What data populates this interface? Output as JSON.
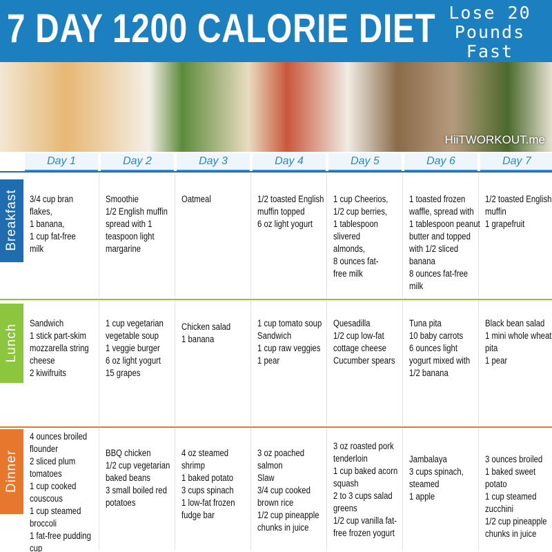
{
  "header": {
    "title": "7 DAY 1200 CALORIE DIET",
    "tagline": [
      "Lose 20",
      "Pounds",
      "Fast"
    ]
  },
  "watermark": "HiiTWORKOUT.me",
  "days": [
    "Day 1",
    "Day 2",
    "Day 3",
    "Day 4",
    "Day 5",
    "Day 6",
    "Day 7"
  ],
  "meals": [
    {
      "name": "Breakfast",
      "cells": [
        [
          "3/4 cup bran",
          "flakes,",
          "1 banana,",
          "1 cup fat-free",
          "milk"
        ],
        [
          "Smoothie",
          "1/2 English muffin",
          "spread with 1",
          "teaspoon light",
          "margarine"
        ],
        [
          "Oatmeal"
        ],
        [
          "1/2 toasted English",
          "muffin topped",
          "6 oz light yogurt"
        ],
        [
          "1 cup Cheerios,",
          "1/2 cup berries,",
          "1 tablespoon",
          "slivered",
          "almonds,",
          "8 ounces fat-",
          "free milk"
        ],
        [
          "1 toasted frozen",
          "waffle, spread with",
          "1 tablespoon peanut",
          "butter and topped",
          "with 1/2 sliced",
          "banana",
          "8 ounces fat-free",
          "milk"
        ],
        [
          "1/2 toasted English",
          "muffin",
          "1 grapefruit"
        ]
      ]
    },
    {
      "name": "Lunch",
      "cells": [
        [
          "Sandwich",
          "1 stick part-skim",
          "mozzarella string",
          "cheese",
          "2 kiwifruits"
        ],
        [
          "1 cup vegetarian",
          "vegetable soup",
          "1 veggie burger",
          "6 oz light yogurt",
          "15 grapes"
        ],
        [
          "Chicken salad",
          "1 banana"
        ],
        [
          "1 cup tomato soup",
          "Sandwich",
          "1 cup raw veggies",
          "1 pear"
        ],
        [
          "Quesadilla",
          "1/2 cup low-fat",
          "cottage cheese",
          "Cucumber spears"
        ],
        [
          "Tuna pita",
          "10 baby carrots",
          "6 ounces light",
          "yogurt mixed with",
          "1/2 banana"
        ],
        [
          "Black bean salad",
          "1 mini whole wheat",
          "pita",
          "1 pear"
        ]
      ]
    },
    {
      "name": "Dinner",
      "cells": [
        [
          "4 ounces broiled",
          "flounder",
          "2 sliced plum",
          "tomatoes",
          "1 cup cooked",
          "couscous",
          "1 cup steamed",
          "broccoli",
          "1 fat-free pudding",
          "cup"
        ],
        [
          "BBQ chicken",
          "1/2 cup vegetarian",
          "baked beans",
          " 3 small boiled red",
          "potatoes"
        ],
        [
          "4 oz steamed",
          "shrimp",
          "1 baked potato",
          "3 cups spinach",
          "1 low-fat frozen",
          "fudge bar"
        ],
        [
          " 3 oz poached",
          "salmon",
          "Slaw",
          "3/4 cup cooked",
          "brown rice",
          "1/2 cup pineapple",
          "chunks in juice"
        ],
        [
          "3 oz roasted pork",
          "tenderloin",
          "1 cup baked acorn",
          "squash",
          "2 to 3 cups salad",
          "greens",
          "1/2 cup vanilla fat-",
          "free frozen yogurt"
        ],
        [
          "Jambalaya",
          "3 cups spinach,",
          "steamed",
          "1 apple"
        ],
        [
          "3 ounces broiled",
          "1 baked sweet",
          "potato",
          "1 cup steamed",
          "zucchini",
          "1/2 cup pineapple",
          "chunks in juice"
        ]
      ]
    }
  ]
}
